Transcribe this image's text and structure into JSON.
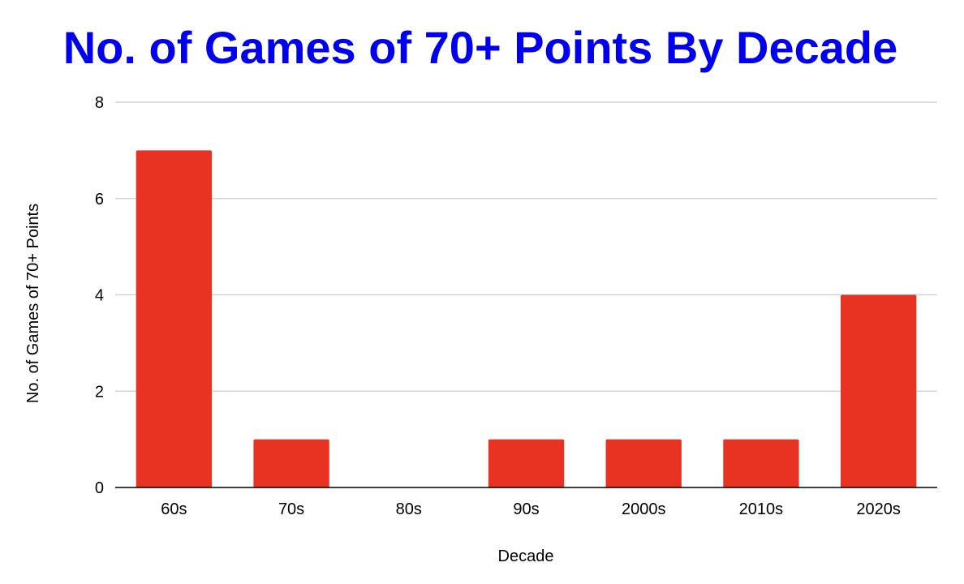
{
  "chart_data": {
    "type": "bar",
    "title": "No. of Games of 70+ Points By Decade",
    "xlabel": "Decade",
    "ylabel": "No. of Games of 70+ Points",
    "categories": [
      "60s",
      "70s",
      "80s",
      "90s",
      "2000s",
      "2010s",
      "2020s"
    ],
    "values": [
      7,
      1,
      0,
      1,
      1,
      1,
      4
    ],
    "ylim": [
      0,
      8
    ],
    "yticks": [
      0,
      2,
      4,
      6,
      8
    ],
    "grid": true,
    "legend": "none"
  },
  "colors": {
    "title": "#0000ee",
    "bar": "#e83323",
    "grid": "#cccccc",
    "axis": "#000000"
  }
}
